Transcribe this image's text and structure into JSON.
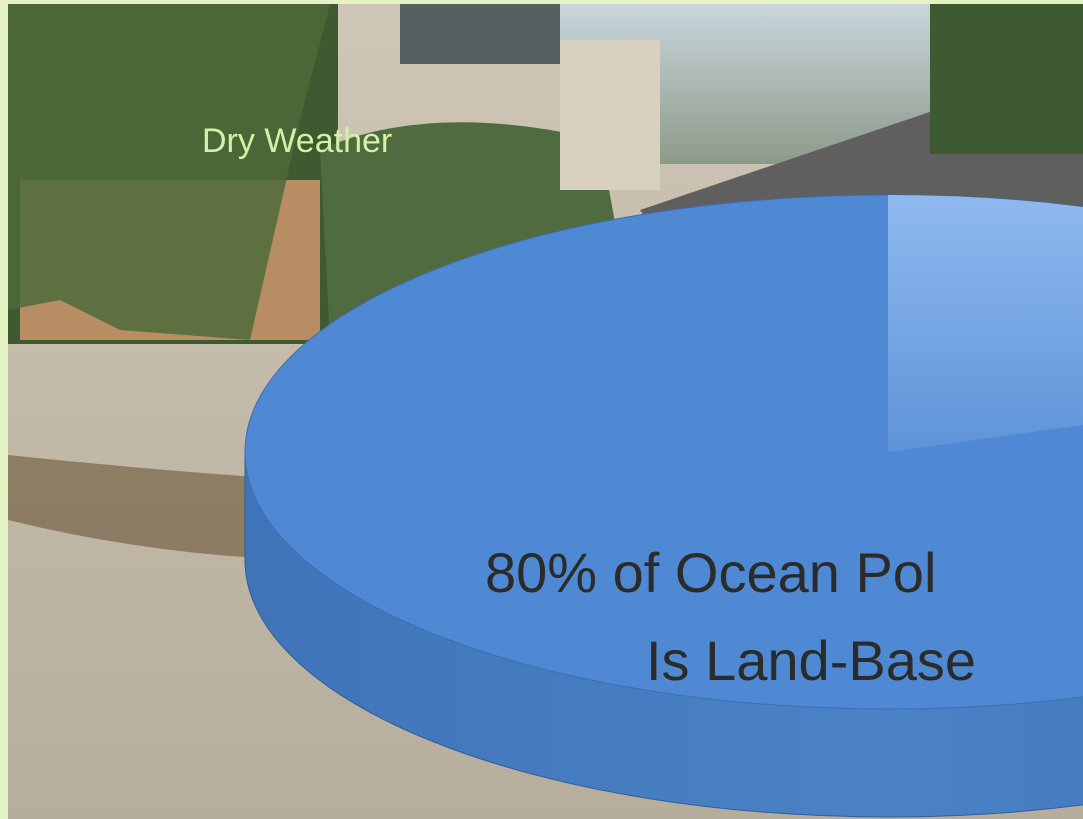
{
  "slide": {
    "caption": "Dry Weather",
    "headline": [
      "80% of Ocean Pol",
      "Is Land-Base"
    ]
  }
}
